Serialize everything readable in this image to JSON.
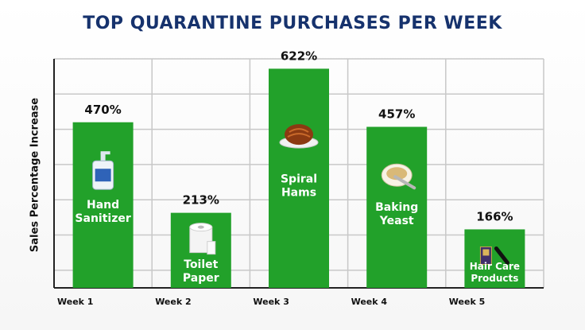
{
  "chart_data": {
    "type": "bar",
    "title": "TOP QUARANTINE PURCHASES PER WEEK",
    "xlabel": "",
    "ylabel": "Sales Percentage Increase",
    "ylim": [
      0,
      650
    ],
    "grid": true,
    "categories": [
      "Week 1",
      "Week 2",
      "Week 3",
      "Week 4",
      "Week 5"
    ],
    "values": [
      470,
      213,
      622,
      457,
      166
    ],
    "value_labels": [
      "470%",
      "213%",
      "622%",
      "457%",
      "166%"
    ],
    "bar_labels": [
      [
        "Hand",
        "Sanitizer"
      ],
      [
        "Toilet",
        "Paper"
      ],
      [
        "Spiral",
        "Hams"
      ],
      [
        "Baking",
        "Yeast"
      ],
      [
        "Hair Care",
        "Products"
      ]
    ],
    "bar_icons": [
      "hand-sanitizer-icon",
      "toilet-paper-icon",
      "spiral-ham-icon",
      "baking-yeast-icon",
      "hair-care-icon"
    ],
    "colors": {
      "bar": "#22a12a",
      "title": "#16326d",
      "grid": "#c8c8c8",
      "text": "#111111"
    }
  }
}
